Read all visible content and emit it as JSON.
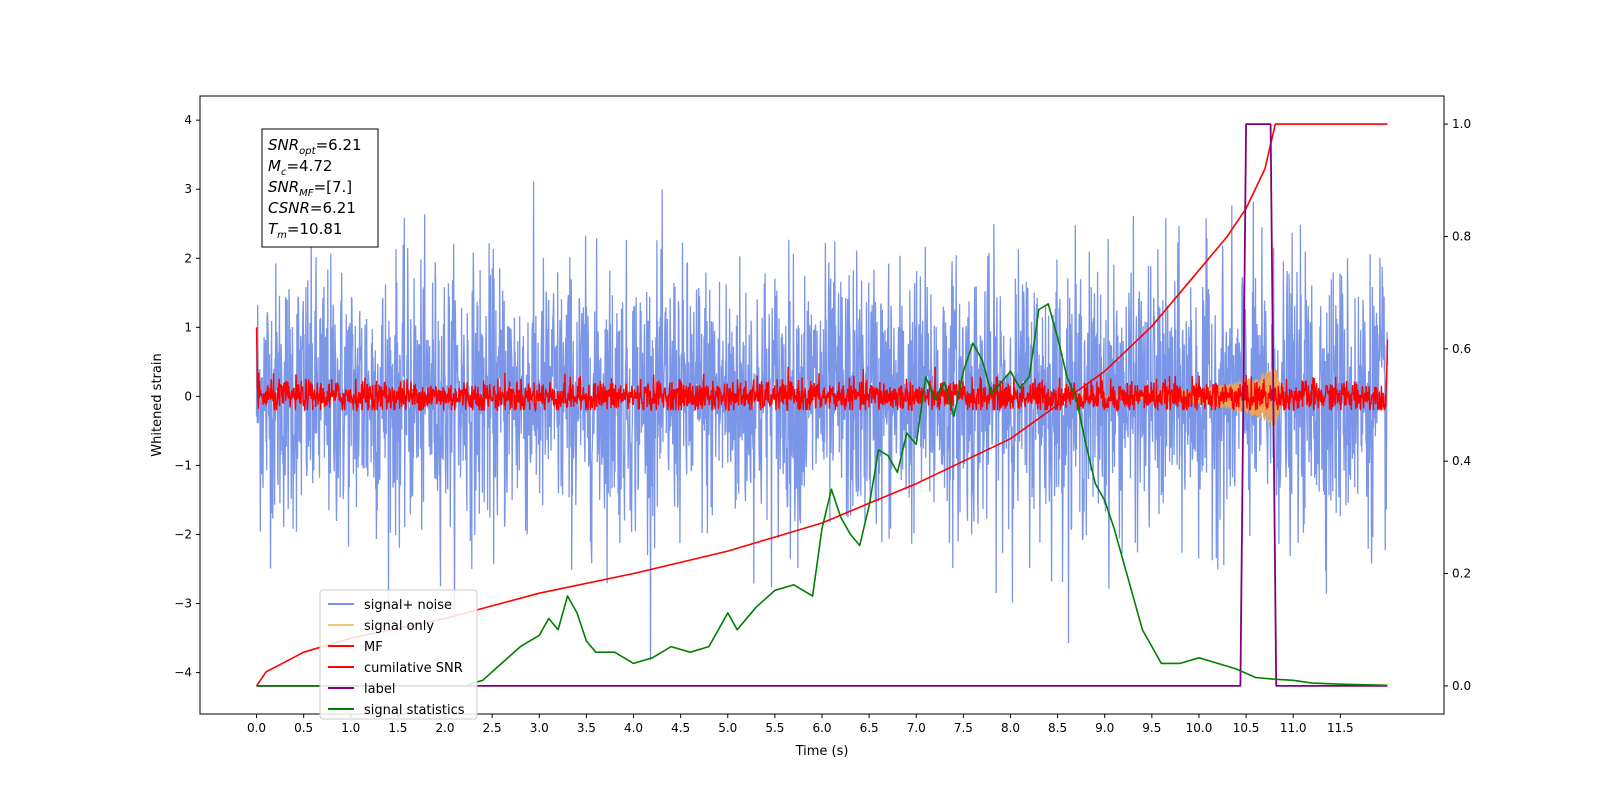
{
  "chart_data": {
    "type": "line",
    "xlabel": "Time (s)",
    "ylabel": "Whitened strain",
    "xlim": [
      -0.6,
      12.6
    ],
    "ylim_left": [
      -4.6,
      4.35
    ],
    "ylim_right": [
      -0.05,
      1.05
    ],
    "x_ticks": [
      0.0,
      0.5,
      1.0,
      1.5,
      2.0,
      2.5,
      3.0,
      3.5,
      4.0,
      4.5,
      5.0,
      5.5,
      6.0,
      6.5,
      7.0,
      7.5,
      8.0,
      8.5,
      9.0,
      9.5,
      10.0,
      10.5,
      11.0,
      11.5
    ],
    "x_tick_labels": [
      "0.0",
      "0.5",
      "1.0",
      "1.5",
      "2.0",
      "2.5",
      "3.0",
      "3.5",
      "4.0",
      "4.5",
      "5.0",
      "5.5",
      "6.0",
      "6.5",
      "7.0",
      "7.5",
      "8.0",
      "8.5",
      "9.0",
      "9.5",
      "10.0",
      "10.5",
      "11.0",
      "11.5"
    ],
    "y_left_ticks": [
      4,
      3,
      2,
      1,
      0,
      -1,
      -2,
      -3,
      -4
    ],
    "y_left_tick_labels": [
      "4",
      "3",
      "2",
      "1",
      "0",
      "−1",
      "−2",
      "−3",
      "−4"
    ],
    "y_right_ticks": [
      1.0,
      0.8,
      0.6,
      0.4,
      0.2,
      0.0
    ],
    "y_right_tick_labels": [
      "1.0",
      "0.8",
      "0.6",
      "0.4",
      "0.2",
      "0.0"
    ],
    "legend_position": "lower-left",
    "grid": false,
    "info_box": {
      "lines": [
        {
          "base": "SNR",
          "sub": "opt",
          "value": "=6.21"
        },
        {
          "base": "M",
          "sub": "c",
          "value": "=4.72"
        },
        {
          "base": "SNR",
          "sub": "MF",
          "value": "=[7.]"
        },
        {
          "base": "CSNR",
          "sub": "",
          "value": "=6.21"
        },
        {
          "base": "T",
          "sub": "m",
          "value": "=10.81"
        }
      ]
    },
    "series": [
      {
        "name": "signal+ noise",
        "axis": "left",
        "color": "#7b96e8",
        "x_range": [
          0.0,
          12.0
        ],
        "noise_std": 0.95,
        "range_observed": [
          -4.1,
          3.95
        ]
      },
      {
        "name": "signal only",
        "axis": "left",
        "color": "#f5c77a",
        "x": [
          0.0,
          9.0,
          9.5,
          10.0,
          10.3,
          10.5,
          10.7,
          10.81,
          10.9,
          12.0
        ],
        "envelope": [
          0.0,
          0.0,
          0.05,
          0.1,
          0.18,
          0.25,
          0.35,
          0.45,
          0.0,
          0.0
        ]
      },
      {
        "name": "MF",
        "axis": "left",
        "color": "#ff0000",
        "x_range": [
          0.0,
          12.0
        ],
        "noise_std": 0.12,
        "range_observed": [
          -0.2,
          1.0
        ]
      },
      {
        "name": "cumilative SNR",
        "axis": "right",
        "color": "#ff0000",
        "x": [
          0.0,
          0.1,
          0.5,
          1.0,
          2.0,
          3.0,
          4.0,
          5.0,
          6.0,
          6.5,
          7.0,
          7.5,
          8.0,
          8.5,
          9.0,
          9.5,
          10.0,
          10.3,
          10.5,
          10.7,
          10.81,
          12.0
        ],
        "y": [
          0.0,
          0.025,
          0.06,
          0.085,
          0.12,
          0.165,
          0.2,
          0.24,
          0.29,
          0.325,
          0.36,
          0.4,
          0.44,
          0.5,
          0.56,
          0.64,
          0.74,
          0.8,
          0.85,
          0.92,
          1.0,
          1.0
        ]
      },
      {
        "name": "label",
        "axis": "right",
        "color": "#800080",
        "x": [
          0.0,
          10.44,
          10.5,
          10.76,
          10.82,
          12.0
        ],
        "y": [
          0.0,
          0.0,
          1.0,
          1.0,
          0.0,
          0.0
        ]
      },
      {
        "name": "signal statistics",
        "axis": "right",
        "color": "#008000",
        "x": [
          0.0,
          2.2,
          2.4,
          2.6,
          2.8,
          3.0,
          3.1,
          3.2,
          3.3,
          3.4,
          3.5,
          3.6,
          3.8,
          4.0,
          4.2,
          4.4,
          4.6,
          4.8,
          5.0,
          5.1,
          5.3,
          5.5,
          5.7,
          5.9,
          6.0,
          6.1,
          6.2,
          6.3,
          6.4,
          6.5,
          6.6,
          6.7,
          6.8,
          6.9,
          7.0,
          7.1,
          7.2,
          7.3,
          7.4,
          7.5,
          7.6,
          7.7,
          7.8,
          7.9,
          8.0,
          8.1,
          8.2,
          8.3,
          8.4,
          8.5,
          8.6,
          8.7,
          8.8,
          8.9,
          9.0,
          9.1,
          9.2,
          9.4,
          9.6,
          9.8,
          10.0,
          10.2,
          10.4,
          10.6,
          10.8,
          11.0,
          11.2,
          11.5,
          12.0
        ],
        "y": [
          0.0,
          0.0,
          0.01,
          0.04,
          0.07,
          0.09,
          0.12,
          0.1,
          0.16,
          0.13,
          0.08,
          0.06,
          0.06,
          0.04,
          0.05,
          0.07,
          0.06,
          0.07,
          0.13,
          0.1,
          0.14,
          0.17,
          0.18,
          0.16,
          0.28,
          0.35,
          0.3,
          0.27,
          0.25,
          0.32,
          0.42,
          0.41,
          0.38,
          0.45,
          0.43,
          0.55,
          0.51,
          0.54,
          0.48,
          0.56,
          0.61,
          0.58,
          0.52,
          0.54,
          0.56,
          0.53,
          0.55,
          0.67,
          0.68,
          0.62,
          0.55,
          0.51,
          0.43,
          0.36,
          0.33,
          0.28,
          0.22,
          0.1,
          0.04,
          0.04,
          0.05,
          0.04,
          0.03,
          0.015,
          0.012,
          0.01,
          0.005,
          0.003,
          0.001
        ]
      }
    ],
    "legend": [
      {
        "label": "signal+ noise",
        "color": "#7b96e8"
      },
      {
        "label": "signal only",
        "color": "#f5c77a"
      },
      {
        "label": "MF",
        "color": "#ff0000"
      },
      {
        "label": "cumilative SNR",
        "color": "#ff0000"
      },
      {
        "label": "label",
        "color": "#800080"
      },
      {
        "label": "signal statistics",
        "color": "#008000"
      }
    ]
  }
}
